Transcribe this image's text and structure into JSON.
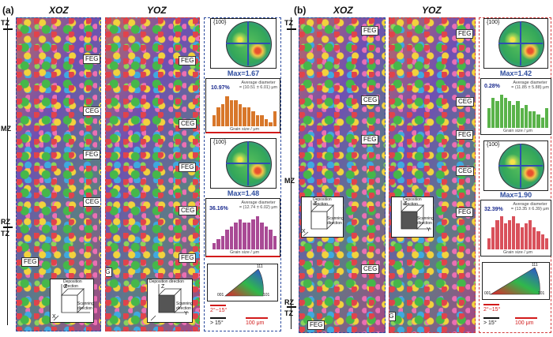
{
  "panels": {
    "a": {
      "label": "(a)"
    },
    "b": {
      "label": "(b)"
    }
  },
  "columns": {
    "xoz": "XOZ",
    "yoz": "YOZ"
  },
  "zones": {
    "tz": "TZ",
    "mz": "MZ",
    "rz": "RZ"
  },
  "grain_tags": {
    "feg": "FEG",
    "ceg": "CEG"
  },
  "pole_figure": {
    "index": "{100}"
  },
  "a": {
    "max1": "Max=1.67",
    "max2": "Max=1.48",
    "hist1": {
      "frac": "10.97%",
      "avg_label": "Average diameter",
      "avg_value": "= (10.51 ± 6.01) μm",
      "xlabel": "Grain size / μm",
      "values": [
        3,
        5,
        6,
        8,
        7,
        7,
        6,
        5,
        5,
        4,
        3,
        3,
        2,
        1,
        4
      ],
      "color": "#d8772a"
    },
    "hist2": {
      "frac": "36.16%",
      "avg_label": "Average diameter",
      "avg_value": "= (12.74 ± 6.02) μm",
      "xlabel": "Grain size / μm",
      "values": [
        2,
        3,
        4,
        6,
        7,
        8,
        9,
        8,
        8,
        9,
        10,
        8,
        7,
        6,
        4
      ],
      "color": "#a94a95"
    }
  },
  "b": {
    "max1": "Max=1.42",
    "max2": "Max=1.90",
    "hist1": {
      "frac": "0.28%",
      "avg_label": "Average diameter",
      "avg_value": "= (11.85 ± 5.88) μm",
      "xlabel": "Grain size / μm",
      "values": [
        6,
        9,
        8,
        10,
        9,
        8,
        7,
        8,
        6,
        7,
        5,
        5,
        4,
        3,
        6
      ],
      "color": "#5ab34a"
    },
    "hist2": {
      "frac": "32.39%",
      "avg_label": "Average diameter",
      "avg_value": "= (13.35 ± 6.39) μm",
      "xlabel": "Grain size / μm",
      "values": [
        3,
        6,
        8,
        9,
        7,
        8,
        9,
        7,
        6,
        7,
        8,
        6,
        5,
        4,
        3
      ],
      "color": "#d9515b"
    }
  },
  "cube": {
    "build": "Deposition direction",
    "scan": "Scanning direction",
    "z": "Z",
    "x": "X",
    "y": "Y"
  },
  "ipf": {
    "c1": "001",
    "c2": "101",
    "c3": "111"
  },
  "legend": {
    "low": "2°~15°",
    "high": "> 15°",
    "scale": "100 μm"
  },
  "colors": {
    "blue_frame": "#2d4c9e",
    "red_frame": "#d23b3b",
    "scale_red": "#d21b1b"
  }
}
